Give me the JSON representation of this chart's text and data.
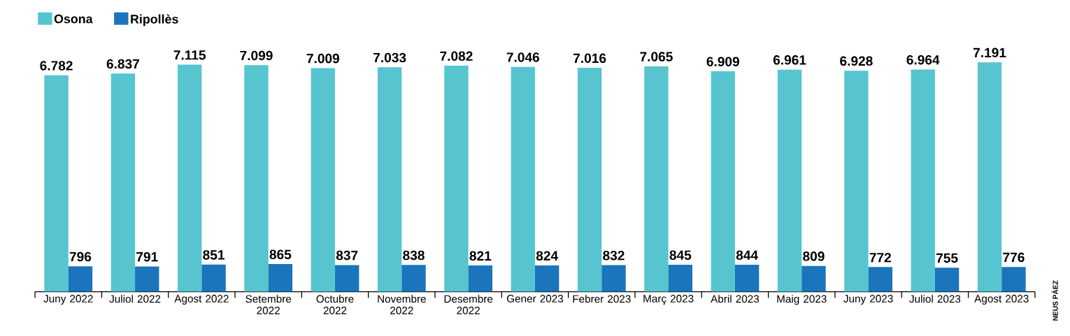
{
  "chart_data": {
    "type": "bar",
    "categories": [
      "Juny 2022",
      "Juliol 2022",
      "Agost 2022",
      "Setembre 2022",
      "Octubre 2022",
      "Novembre 2022",
      "Desembre 2022",
      "Gener 2023",
      "Febrer 2023",
      "Març 2023",
      "Abril 2023",
      "Maig 2023",
      "Juny 2023",
      "Juliol 2023",
      "Agost 2023"
    ],
    "series": [
      {
        "name": "Osona",
        "color": "#56c5d0",
        "values": [
          6782,
          6837,
          7115,
          7099,
          7009,
          7033,
          7082,
          7046,
          7016,
          7065,
          6909,
          6961,
          6928,
          6964,
          7191
        ],
        "value_labels": [
          "6.782",
          "6.837",
          "7.115",
          "7.099",
          "7.009",
          "7.033",
          "7.082",
          "7.046",
          "7.016",
          "7.065",
          "6.909",
          "6.961",
          "6.928",
          "6.964",
          "7.191"
        ]
      },
      {
        "name": "Ripollès",
        "color": "#1a75bc",
        "values": [
          796,
          791,
          851,
          865,
          837,
          838,
          821,
          824,
          832,
          845,
          844,
          809,
          772,
          755,
          776
        ],
        "value_labels": [
          "796",
          "791",
          "851",
          "865",
          "837",
          "838",
          "821",
          "824",
          "832",
          "845",
          "844",
          "809",
          "772",
          "755",
          "776"
        ]
      }
    ],
    "legend": "top left",
    "annotations": [
      "NEUS PÁEZ"
    ]
  }
}
